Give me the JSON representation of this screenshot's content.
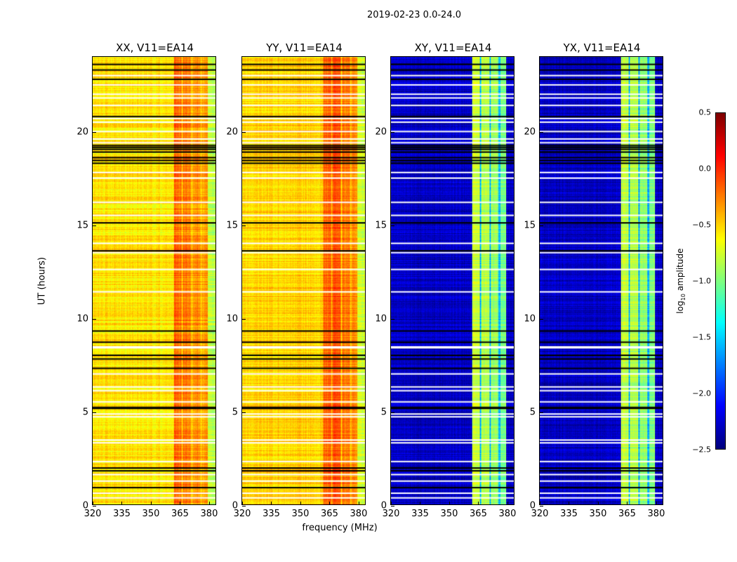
{
  "chart_data": {
    "type": "heatmap",
    "title": "2019-02-23 0.0-24.0",
    "xlabel": "frequency (MHz)",
    "ylabel": "UT (hours)",
    "xlim": [
      320,
      384
    ],
    "ylim": [
      0,
      24
    ],
    "xticks": [
      320,
      335,
      350,
      365,
      380
    ],
    "yticks": [
      0,
      5,
      10,
      15,
      20
    ],
    "colorbar": {
      "label_main": "log",
      "label_sub": "10",
      "label_rest": " amplitude",
      "range": [
        -2.5,
        0.5
      ],
      "ticks": [
        "0.5",
        "0.0",
        "−0.5",
        "−1.0",
        "−1.5",
        "−2.0",
        "−2.5"
      ],
      "colormap": "jet"
    },
    "panels": [
      {
        "title": "XX, V11=EA14",
        "base": -0.55,
        "bands": [
          [
            362,
            366,
            -0.2
          ],
          [
            366,
            367,
            -0.45
          ],
          [
            367,
            371,
            -0.25
          ],
          [
            371,
            372,
            -0.5
          ],
          [
            372,
            376,
            -0.3
          ],
          [
            376,
            377,
            -0.5
          ],
          [
            377,
            380,
            -0.35
          ],
          [
            380,
            384,
            -0.8
          ]
        ]
      },
      {
        "title": "YY, V11=EA14",
        "base": -0.5,
        "bands": [
          [
            362,
            366,
            -0.15
          ],
          [
            366,
            367,
            -0.4
          ],
          [
            367,
            371,
            -0.1
          ],
          [
            371,
            372,
            -0.45
          ],
          [
            372,
            376,
            -0.25
          ],
          [
            376,
            377,
            -0.45
          ],
          [
            377,
            380,
            -0.3
          ],
          [
            380,
            384,
            -0.75
          ]
        ]
      },
      {
        "title": "XY, V11=EA14",
        "base": -2.3,
        "bands": [
          [
            362,
            366,
            -0.8
          ],
          [
            366,
            367,
            -1.6
          ],
          [
            367,
            371,
            -0.85
          ],
          [
            371,
            372,
            -1.6
          ],
          [
            372,
            376,
            -0.95
          ],
          [
            376,
            377,
            -1.6
          ],
          [
            377,
            380,
            -1.0
          ]
        ]
      },
      {
        "title": "YX, V11=EA14",
        "base": -2.3,
        "bands": [
          [
            362,
            366,
            -0.8
          ],
          [
            366,
            367,
            -1.6
          ],
          [
            367,
            371,
            -0.85
          ],
          [
            371,
            372,
            -1.6
          ],
          [
            372,
            376,
            -0.95
          ],
          [
            376,
            377,
            -1.6
          ],
          [
            377,
            380,
            -1.0
          ]
        ]
      }
    ],
    "flagged_white_ut": [
      0.35,
      0.6,
      1.25,
      1.6,
      2.3,
      3.3,
      3.45,
      4.7,
      4.85,
      5.5,
      6.1,
      6.3,
      7.0,
      8.4,
      8.45,
      11.4,
      12.6,
      13.5,
      14.0,
      15.5,
      16.2,
      17.5,
      17.8,
      19.4,
      19.6,
      20.0,
      20.5,
      20.7,
      21.4,
      21.8,
      22.0,
      22.5,
      23.0
    ],
    "flagged_black_ut": [
      0.9,
      1.8,
      1.95,
      5.15,
      5.2,
      7.3,
      7.8,
      8.0,
      8.7,
      9.3,
      13.6,
      15.1,
      18.3,
      18.45,
      18.6,
      18.9,
      19.05,
      19.15,
      19.25,
      20.8,
      22.8,
      23.3,
      23.6
    ]
  }
}
